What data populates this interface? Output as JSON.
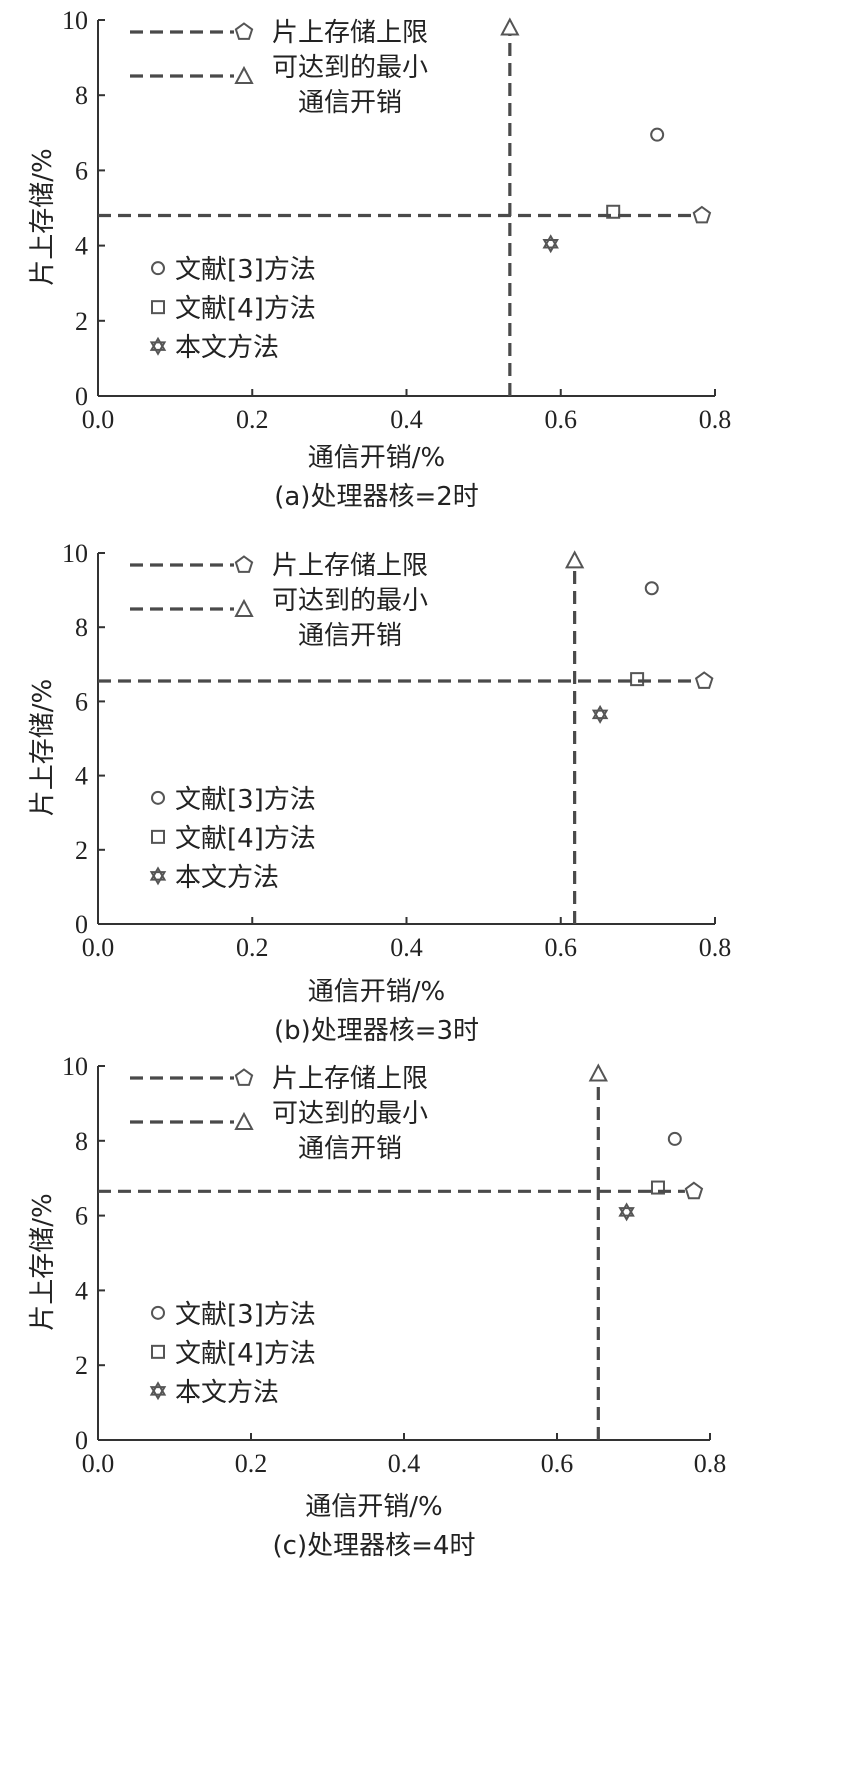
{
  "chart_data": [
    {
      "type": "scatter",
      "caption": "(a)处理器核=2时",
      "xlabel": "通信开销/%",
      "ylabel": "片上存储/%",
      "xlim": [
        0,
        0.8
      ],
      "ylim": [
        0,
        10
      ],
      "x_ticks": [
        "0.0",
        "0.2",
        "0.4",
        "0.6",
        "0.8"
      ],
      "y_ticks": [
        "0",
        "2",
        "4",
        "6",
        "8",
        "10"
      ],
      "series": [
        {
          "name": "文献[3]方法",
          "marker": "circle",
          "points": [
            {
              "x": 0.725,
              "y": 6.95
            }
          ]
        },
        {
          "name": "文献[4]方法",
          "marker": "square",
          "points": [
            {
              "x": 0.668,
              "y": 4.9
            }
          ]
        },
        {
          "name": "本文方法",
          "marker": "star",
          "points": [
            {
              "x": 0.587,
              "y": 4.05
            }
          ]
        },
        {
          "name": "片上存储上限",
          "marker": "pentagon",
          "points": [
            {
              "x": 0.783,
              "y": 4.8
            }
          ],
          "line": {
            "orientation": "horizontal",
            "value": 4.8
          }
        },
        {
          "name": "可达到的最小通信开销",
          "marker": "triangle",
          "points": [
            {
              "x": 0.534,
              "y": 9.8
            }
          ],
          "line": {
            "orientation": "vertical",
            "value": 0.534
          }
        }
      ],
      "dash_legend": [
        "片上存储上限",
        "可达到的最小",
        "通信开销"
      ],
      "marker_legend": [
        "文献[3]方法",
        "文献[4]方法",
        "本文方法"
      ]
    },
    {
      "type": "scatter",
      "caption": "(b)处理器核=3时",
      "xlabel": "通信开销/%",
      "ylabel": "片上存储/%",
      "xlim": [
        0,
        0.8
      ],
      "ylim": [
        0,
        10
      ],
      "x_ticks": [
        "0.0",
        "0.2",
        "0.4",
        "0.6",
        "0.8"
      ],
      "y_ticks": [
        "0",
        "2",
        "4",
        "6",
        "8",
        "10"
      ],
      "series": [
        {
          "name": "文献[3]方法",
          "marker": "circle",
          "points": [
            {
              "x": 0.718,
              "y": 9.05
            }
          ]
        },
        {
          "name": "文献[4]方法",
          "marker": "square",
          "points": [
            {
              "x": 0.699,
              "y": 6.6
            }
          ]
        },
        {
          "name": "本文方法",
          "marker": "star",
          "points": [
            {
              "x": 0.651,
              "y": 5.65
            }
          ]
        },
        {
          "name": "片上存储上限",
          "marker": "pentagon",
          "points": [
            {
              "x": 0.786,
              "y": 6.55
            }
          ],
          "line": {
            "orientation": "horizontal",
            "value": 6.55
          }
        },
        {
          "name": "可达到的最小通信开销",
          "marker": "triangle",
          "points": [
            {
              "x": 0.618,
              "y": 9.8
            }
          ],
          "line": {
            "orientation": "vertical",
            "value": 0.618
          }
        }
      ],
      "dash_legend": [
        "片上存储上限",
        "可达到的最小",
        "通信开销"
      ],
      "marker_legend": [
        "文献[3]方法",
        "文献[4]方法",
        "本文方法"
      ]
    },
    {
      "type": "scatter",
      "caption": "(c)处理器核=4时",
      "xlabel": "通信开销/%",
      "ylabel": "片上存储/%",
      "xlim": [
        0,
        0.8
      ],
      "ylim": [
        0,
        10
      ],
      "x_ticks": [
        "0.0",
        "0.2",
        "0.4",
        "0.6",
        "0.8"
      ],
      "y_ticks": [
        "0",
        "2",
        "4",
        "6",
        "8",
        "10"
      ],
      "series": [
        {
          "name": "文献[3]方法",
          "marker": "circle",
          "points": [
            {
              "x": 0.754,
              "y": 8.05
            }
          ]
        },
        {
          "name": "文献[4]方法",
          "marker": "square",
          "points": [
            {
              "x": 0.732,
              "y": 6.75
            }
          ]
        },
        {
          "name": "本文方法",
          "marker": "star",
          "points": [
            {
              "x": 0.691,
              "y": 6.1
            }
          ]
        },
        {
          "name": "片上存储上限",
          "marker": "pentagon",
          "points": [
            {
              "x": 0.779,
              "y": 6.65
            }
          ],
          "line": {
            "orientation": "horizontal",
            "value": 6.65
          }
        },
        {
          "name": "可达到的最小通信开销",
          "marker": "triangle",
          "points": [
            {
              "x": 0.654,
              "y": 9.8
            }
          ],
          "line": {
            "orientation": "vertical",
            "value": 0.654
          }
        }
      ],
      "dash_legend": [
        "片上存储上限",
        "可达到的最小",
        "通信开销"
      ],
      "marker_legend": [
        "文献[3]方法",
        "文献[4]方法",
        "本文方法"
      ]
    }
  ],
  "colors": {
    "axis": "#333333",
    "marker": "#555555",
    "dash": "#4a4a4a",
    "text": "#222222"
  }
}
